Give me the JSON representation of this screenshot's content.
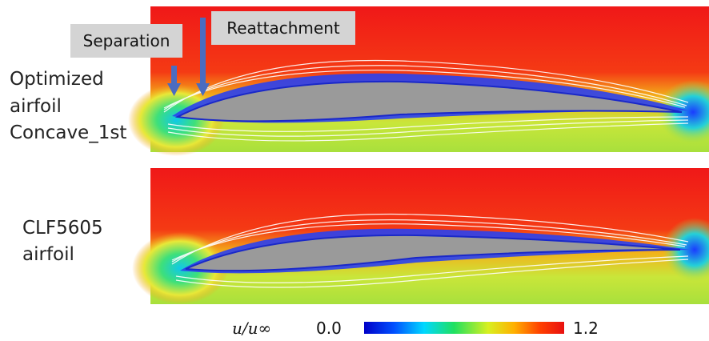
{
  "annotations": {
    "separation": "Separation",
    "reattachment": "Reattachment"
  },
  "panels": [
    {
      "label_lines": [
        "Optimized",
        "airfoil",
        "Concave_1st"
      ]
    },
    {
      "label_lines": [
        "CLF5605",
        "airfoil"
      ]
    }
  ],
  "colorbar": {
    "label": "u/u∞",
    "min": "0.0",
    "max": "1.2"
  }
}
